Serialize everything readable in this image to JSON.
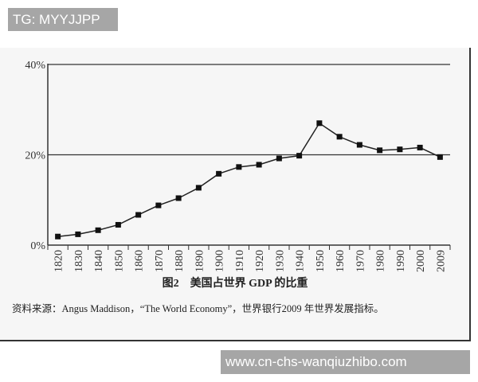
{
  "watermarks": {
    "top": "TG: MYYJJPP",
    "bottom": "www.cn-chs-wanqiuzhibo.com"
  },
  "chart_data": {
    "type": "line",
    "title": "图2　美国占世界 GDP 的比重",
    "source": "资料来源：Angus Maddison，“The World Economy”，世界银行2009 年世界发展指标。",
    "xlabel": "",
    "ylabel": "",
    "categories": [
      "1820",
      "1830",
      "1840",
      "1850",
      "1860",
      "1870",
      "1880",
      "1890",
      "1900",
      "1910",
      "1920",
      "1930",
      "1940",
      "1950",
      "1960",
      "1970",
      "1980",
      "1990",
      "2000",
      "2009"
    ],
    "values": [
      1.9,
      2.4,
      3.3,
      4.5,
      6.7,
      8.8,
      10.4,
      12.7,
      15.8,
      17.3,
      17.8,
      19.2,
      19.8,
      27.0,
      24.0,
      22.2,
      21.0,
      21.2,
      21.6,
      19.5
    ],
    "ylim": [
      0,
      40
    ],
    "yticks": [
      {
        "value": 0,
        "label": "0%"
      },
      {
        "value": 20,
        "label": "20%"
      },
      {
        "value": 40,
        "label": "40%"
      }
    ],
    "grid": "horizontal at 20% and 40%",
    "marker": "square",
    "line_color": "#222222"
  }
}
